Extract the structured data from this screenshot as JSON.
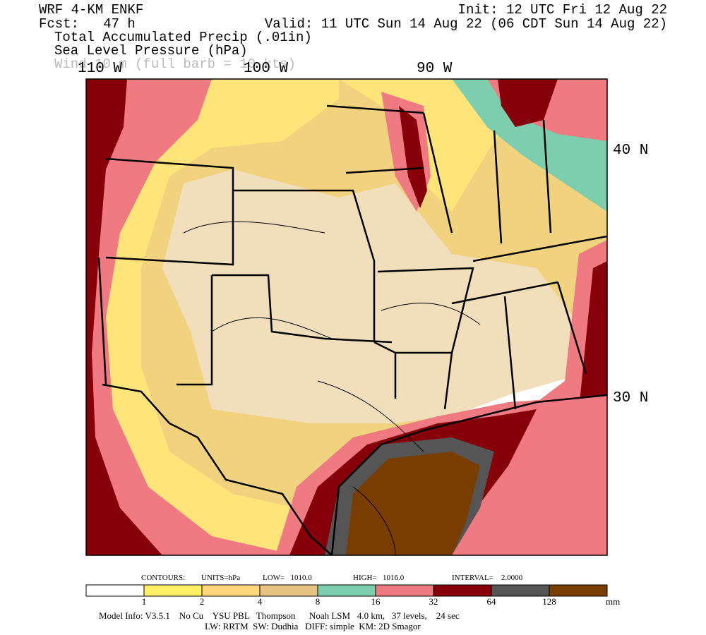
{
  "header": {
    "model": "WRF 4-KM ENKF",
    "forecast": "Fcst:   47 h",
    "init": "Init: 12 UTC Fri 12 Aug 22",
    "valid": "Valid: 11 UTC Sun 14 Aug 22 (06 CDT Sun 14 Aug 22)",
    "fields": [
      "Total Accumulated Precip (.01in)",
      "Sea Level Pressure (hPa)",
      "Wind 10 m (full barb = 10 kts)"
    ]
  },
  "map": {
    "lon_labels": [
      "110 W",
      "100 W",
      "90 W"
    ],
    "lat_labels": [
      "40 N",
      "30 N"
    ]
  },
  "contour_info": {
    "label": "CONTOURS:",
    "units": "UNITS=hPa",
    "low": "LOW=   1010.0",
    "high": "HIGH=   1016.0",
    "interval": "INTERVAL=    2.0000"
  },
  "colorbar": {
    "ticks": [
      1,
      2,
      4,
      8,
      16,
      32,
      64,
      128
    ],
    "unit": "mm",
    "colors": [
      "#ffffff",
      "#ffee66",
      "#ffd77a",
      "#e6c383",
      "#7dceae",
      "#ef7a82",
      "#850008",
      "#555555",
      "#7a3d00"
    ]
  },
  "footer": {
    "line1": "Model Info: V3.5.1    No Cu    YSU PBL   Thompson      Noah LSM   4.0 km,   37 levels,    24 sec",
    "line2": "LW: RRTM  SW: Dudhia   DIFF: simple  KM: 2D Smagor"
  }
}
